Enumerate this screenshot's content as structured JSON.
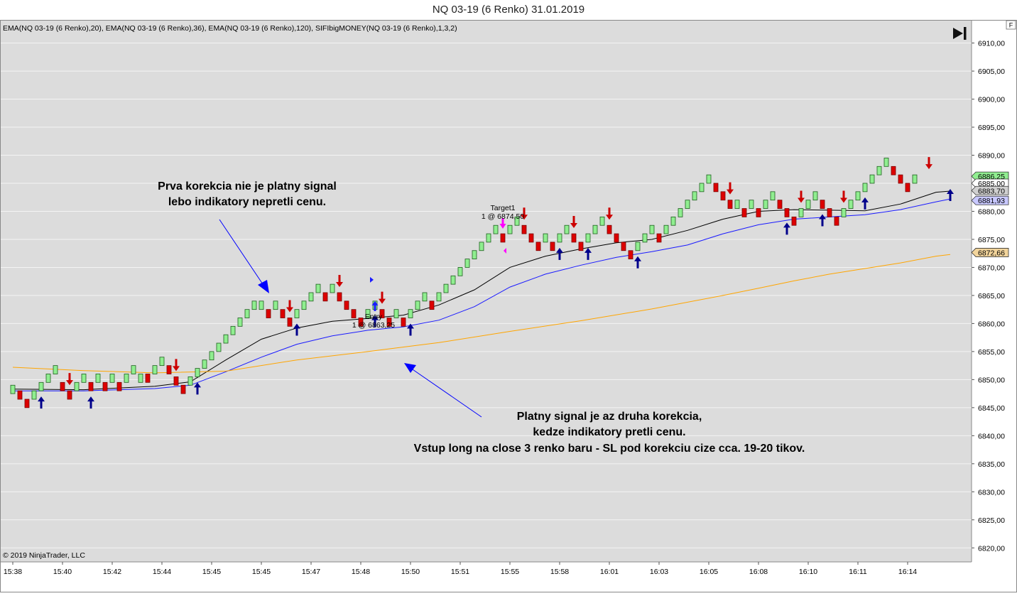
{
  "window": {
    "title": "NQ 03-19 (6 Renko)  31.01.2019"
  },
  "indicator_label": "EMA(NQ 03-19 (6 Renko),20), EMA(NQ 03-19 (6 Renko),36), EMA(NQ 03-19 (6 Renko),120), SIFIbigMONEY(NQ 03-19 (6 Renko),1,3,2)",
  "copyright": "© 2019 NinjaTrader, LLC",
  "panel_badge": "F",
  "colors": {
    "background": "#dcdcdc",
    "up_brick": "#90ee90",
    "down_brick": "#dd0000",
    "ema20": "#000000",
    "ema36": "#1a1aff",
    "ema120": "#ffa500",
    "buy_arrow": "#00008b",
    "sell_arrow": "#cc0000",
    "annotation": "#000000",
    "pointer": "#0000ff",
    "target_marker": "#ff00ff"
  },
  "annotations": {
    "top_left": [
      "Prva korekcia nie je platny signal",
      "lebo indikatory nepretli cenu."
    ],
    "bottom": [
      "Platny signal je az druha korekcia,",
      "kedze indikatory pretli cenu.",
      "Vstup long na close 3 renko baru - SL pod korekciu cize cca. 19-20 tikov."
    ]
  },
  "orders": {
    "target_label": "Target1",
    "target_detail": "1 @ 6874,50",
    "entry_label": "Entry",
    "entry_detail": "1 @ 6863,25"
  },
  "chart_data": {
    "type": "renko",
    "brick_size": 1.5,
    "ylim": [
      6817.5,
      6914
    ],
    "y_ticks": [
      6820,
      6825,
      6830,
      6835,
      6840,
      6845,
      6850,
      6855,
      6860,
      6865,
      6870,
      6875,
      6880,
      6885,
      6890,
      6895,
      6900,
      6905,
      6910
    ],
    "y_tick_labels": [
      "6820,00",
      "6825,00",
      "6830,00",
      "6835,00",
      "6840,00",
      "6845,00",
      "6850,00",
      "6855,00",
      "6860,00",
      "6865,00",
      "6870,00",
      "6875,00",
      "6880,00",
      "6885,00",
      "6890,00",
      "6895,00",
      "6900,00",
      "6905,00",
      "6910,00"
    ],
    "x_labels": [
      {
        "label": "15:38",
        "bar": 0
      },
      {
        "label": "15:40",
        "bar": 7
      },
      {
        "label": "15:42",
        "bar": 14
      },
      {
        "label": "15:44",
        "bar": 21
      },
      {
        "label": "15:45",
        "bar": 28
      },
      {
        "label": "15:45",
        "bar": 35
      },
      {
        "label": "15:47",
        "bar": 42
      },
      {
        "label": "15:48",
        "bar": 49
      },
      {
        "label": "15:50",
        "bar": 56
      },
      {
        "label": "15:51",
        "bar": 63
      },
      {
        "label": "15:55",
        "bar": 70
      },
      {
        "label": "15:58",
        "bar": 77
      },
      {
        "label": "16:01",
        "bar": 84
      },
      {
        "label": "16:03",
        "bar": 91
      },
      {
        "label": "16:05",
        "bar": 98
      },
      {
        "label": "16:08",
        "bar": 105
      },
      {
        "label": "16:10",
        "bar": 112
      },
      {
        "label": "16:11",
        "bar": 119
      },
      {
        "label": "16:14",
        "bar": 126
      }
    ],
    "bricks": [
      {
        "o": 6847.5,
        "c": 6849.0
      },
      {
        "o": 6848.0,
        "c": 6846.5
      },
      {
        "o": 6846.5,
        "c": 6845.0
      },
      {
        "o": 6846.5,
        "c": 6848.0
      },
      {
        "o": 6848.0,
        "c": 6849.5
      },
      {
        "o": 6849.5,
        "c": 6851.0
      },
      {
        "o": 6851.0,
        "c": 6852.5
      },
      {
        "o": 6849.5,
        "c": 6848.0
      },
      {
        "o": 6848.0,
        "c": 6846.5
      },
      {
        "o": 6848.0,
        "c": 6849.5
      },
      {
        "o": 6849.5,
        "c": 6851.0
      },
      {
        "o": 6849.5,
        "c": 6848.0
      },
      {
        "o": 6849.5,
        "c": 6851.0
      },
      {
        "o": 6849.5,
        "c": 6848.0
      },
      {
        "o": 6849.5,
        "c": 6851.0
      },
      {
        "o": 6849.5,
        "c": 6848.0
      },
      {
        "o": 6849.5,
        "c": 6851.0
      },
      {
        "o": 6851.0,
        "c": 6852.5
      },
      {
        "o": 6849.5,
        "c": 6851.0
      },
      {
        "o": 6851.0,
        "c": 6849.5
      },
      {
        "o": 6851.0,
        "c": 6852.5
      },
      {
        "o": 6852.5,
        "c": 6854.0
      },
      {
        "o": 6852.5,
        "c": 6851.0
      },
      {
        "o": 6850.5,
        "c": 6849.0
      },
      {
        "o": 6849.0,
        "c": 6847.5
      },
      {
        "o": 6849.0,
        "c": 6850.5
      },
      {
        "o": 6850.5,
        "c": 6852.0
      },
      {
        "o": 6852.0,
        "c": 6853.5
      },
      {
        "o": 6853.5,
        "c": 6855.0
      },
      {
        "o": 6855.0,
        "c": 6856.5
      },
      {
        "o": 6856.5,
        "c": 6858.0
      },
      {
        "o": 6858.0,
        "c": 6859.5
      },
      {
        "o": 6859.5,
        "c": 6861.0
      },
      {
        "o": 6861.0,
        "c": 6862.5
      },
      {
        "o": 6862.5,
        "c": 6864.0
      },
      {
        "o": 6862.5,
        "c": 6864.0
      },
      {
        "o": 6862.5,
        "c": 6861.0
      },
      {
        "o": 6862.5,
        "c": 6864.0
      },
      {
        "o": 6862.5,
        "c": 6861.0
      },
      {
        "o": 6861.0,
        "c": 6859.5
      },
      {
        "o": 6861.0,
        "c": 6862.5
      },
      {
        "o": 6862.5,
        "c": 6864.0
      },
      {
        "o": 6864.0,
        "c": 6865.5
      },
      {
        "o": 6865.5,
        "c": 6867.0
      },
      {
        "o": 6865.5,
        "c": 6864.0
      },
      {
        "o": 6865.5,
        "c": 6867.0
      },
      {
        "o": 6865.5,
        "c": 6864.0
      },
      {
        "o": 6864.0,
        "c": 6862.5
      },
      {
        "o": 6862.5,
        "c": 6861.0
      },
      {
        "o": 6861.0,
        "c": 6859.5
      },
      {
        "o": 6861.0,
        "c": 6862.5
      },
      {
        "o": 6862.5,
        "c": 6864.0
      },
      {
        "o": 6862.5,
        "c": 6861.0
      },
      {
        "o": 6861.0,
        "c": 6859.5
      },
      {
        "o": 6861.0,
        "c": 6862.5
      },
      {
        "o": 6861.0,
        "c": 6859.5
      },
      {
        "o": 6861.0,
        "c": 6862.5
      },
      {
        "o": 6862.5,
        "c": 6864.0
      },
      {
        "o": 6864.0,
        "c": 6865.5
      },
      {
        "o": 6864.0,
        "c": 6862.5
      },
      {
        "o": 6864.0,
        "c": 6865.5
      },
      {
        "o": 6865.5,
        "c": 6867.0
      },
      {
        "o": 6867.0,
        "c": 6868.5
      },
      {
        "o": 6868.5,
        "c": 6870.0
      },
      {
        "o": 6870.0,
        "c": 6871.5
      },
      {
        "o": 6871.5,
        "c": 6873.0
      },
      {
        "o": 6873.0,
        "c": 6874.5
      },
      {
        "o": 6874.5,
        "c": 6876.0
      },
      {
        "o": 6876.0,
        "c": 6877.5
      },
      {
        "o": 6876.0,
        "c": 6874.5
      },
      {
        "o": 6876.0,
        "c": 6877.5
      },
      {
        "o": 6877.5,
        "c": 6879.0
      },
      {
        "o": 6877.5,
        "c": 6876.0
      },
      {
        "o": 6876.0,
        "c": 6874.5
      },
      {
        "o": 6874.5,
        "c": 6873.0
      },
      {
        "o": 6874.5,
        "c": 6876.0
      },
      {
        "o": 6874.5,
        "c": 6873.0
      },
      {
        "o": 6874.5,
        "c": 6876.0
      },
      {
        "o": 6876.0,
        "c": 6877.5
      },
      {
        "o": 6876.0,
        "c": 6874.5
      },
      {
        "o": 6874.5,
        "c": 6873.0
      },
      {
        "o": 6874.5,
        "c": 6876.0
      },
      {
        "o": 6876.0,
        "c": 6877.5
      },
      {
        "o": 6877.5,
        "c": 6879.0
      },
      {
        "o": 6877.5,
        "c": 6876.0
      },
      {
        "o": 6876.0,
        "c": 6874.5
      },
      {
        "o": 6874.5,
        "c": 6873.0
      },
      {
        "o": 6873.0,
        "c": 6871.5
      },
      {
        "o": 6873.0,
        "c": 6874.5
      },
      {
        "o": 6874.5,
        "c": 6876.0
      },
      {
        "o": 6876.0,
        "c": 6877.5
      },
      {
        "o": 6876.0,
        "c": 6874.5
      },
      {
        "o": 6876.0,
        "c": 6877.5
      },
      {
        "o": 6877.5,
        "c": 6879.0
      },
      {
        "o": 6879.0,
        "c": 6880.5
      },
      {
        "o": 6880.5,
        "c": 6882.0
      },
      {
        "o": 6882.0,
        "c": 6883.5
      },
      {
        "o": 6883.5,
        "c": 6885.0
      },
      {
        "o": 6885.0,
        "c": 6886.5
      },
      {
        "o": 6885.0,
        "c": 6883.5
      },
      {
        "o": 6883.5,
        "c": 6882.0
      },
      {
        "o": 6882.0,
        "c": 6880.5
      },
      {
        "o": 6880.5,
        "c": 6882.0
      },
      {
        "o": 6880.5,
        "c": 6879.0
      },
      {
        "o": 6880.5,
        "c": 6882.0
      },
      {
        "o": 6880.5,
        "c": 6879.0
      },
      {
        "o": 6880.5,
        "c": 6882.0
      },
      {
        "o": 6882.0,
        "c": 6883.5
      },
      {
        "o": 6882.0,
        "c": 6880.5
      },
      {
        "o": 6880.5,
        "c": 6879.0
      },
      {
        "o": 6879.0,
        "c": 6877.5
      },
      {
        "o": 6879.0,
        "c": 6880.5
      },
      {
        "o": 6880.5,
        "c": 6882.0
      },
      {
        "o": 6882.0,
        "c": 6883.5
      },
      {
        "o": 6882.0,
        "c": 6880.5
      },
      {
        "o": 6880.5,
        "c": 6879.0
      },
      {
        "o": 6879.0,
        "c": 6877.5
      },
      {
        "o": 6879.0,
        "c": 6880.5
      },
      {
        "o": 6880.5,
        "c": 6882.0
      },
      {
        "o": 6882.0,
        "c": 6883.5
      },
      {
        "o": 6883.5,
        "c": 6885.0
      },
      {
        "o": 6885.0,
        "c": 6886.5
      },
      {
        "o": 6886.5,
        "c": 6888.0
      },
      {
        "o": 6888.0,
        "c": 6889.5
      },
      {
        "o": 6888.0,
        "c": 6886.5
      },
      {
        "o": 6886.5,
        "c": 6885.0
      },
      {
        "o": 6885.0,
        "c": 6883.5
      },
      {
        "o": 6885.0,
        "c": 6886.5
      }
    ],
    "series": [
      {
        "name": "EMA(NQ 03-19 (6 Renko),20)",
        "color": "#000000",
        "points": [
          [
            0,
            6848.3
          ],
          [
            10,
            6848.2
          ],
          [
            20,
            6848.8
          ],
          [
            25,
            6849.6
          ],
          [
            30,
            6853.5
          ],
          [
            35,
            6857.2
          ],
          [
            40,
            6859.2
          ],
          [
            45,
            6860.4
          ],
          [
            50,
            6860.9
          ],
          [
            55,
            6861.5
          ],
          [
            60,
            6863.3
          ],
          [
            65,
            6866.0
          ],
          [
            70,
            6870.0
          ],
          [
            75,
            6872.0
          ],
          [
            80,
            6873.3
          ],
          [
            85,
            6874.4
          ],
          [
            90,
            6875.0
          ],
          [
            95,
            6876.6
          ],
          [
            100,
            6878.6
          ],
          [
            105,
            6880.0
          ],
          [
            110,
            6880.3
          ],
          [
            115,
            6880.2
          ],
          [
            120,
            6880.1
          ],
          [
            125,
            6881.3
          ],
          [
            130,
            6883.4
          ],
          [
            132,
            6883.6
          ]
        ]
      },
      {
        "name": "EMA(NQ 03-19 (6 Renko),36)",
        "color": "#1a1aff",
        "points": [
          [
            0,
            6848.0
          ],
          [
            10,
            6848.0
          ],
          [
            20,
            6848.4
          ],
          [
            25,
            6849.0
          ],
          [
            30,
            6851.4
          ],
          [
            35,
            6854.0
          ],
          [
            40,
            6856.3
          ],
          [
            45,
            6857.8
          ],
          [
            50,
            6858.8
          ],
          [
            55,
            6859.4
          ],
          [
            60,
            6860.6
          ],
          [
            65,
            6863.0
          ],
          [
            70,
            6866.5
          ],
          [
            75,
            6868.8
          ],
          [
            80,
            6870.4
          ],
          [
            85,
            6871.8
          ],
          [
            90,
            6872.8
          ],
          [
            95,
            6874.0
          ],
          [
            100,
            6876.0
          ],
          [
            105,
            6877.6
          ],
          [
            110,
            6878.6
          ],
          [
            115,
            6879.0
          ],
          [
            120,
            6879.4
          ],
          [
            125,
            6880.3
          ],
          [
            130,
            6881.7
          ],
          [
            132,
            6882.2
          ]
        ]
      },
      {
        "name": "EMA(NQ 03-19 (6 Renko),120)",
        "color": "#ffa500",
        "points": [
          [
            0,
            6852.2
          ],
          [
            10,
            6851.6
          ],
          [
            20,
            6851.2
          ],
          [
            30,
            6851.5
          ],
          [
            40,
            6853.5
          ],
          [
            50,
            6855.0
          ],
          [
            60,
            6856.6
          ],
          [
            70,
            6858.6
          ],
          [
            80,
            6860.5
          ],
          [
            90,
            6862.6
          ],
          [
            100,
            6865.0
          ],
          [
            105,
            6866.3
          ],
          [
            110,
            6867.6
          ],
          [
            115,
            6868.8
          ],
          [
            120,
            6869.8
          ],
          [
            125,
            6870.8
          ],
          [
            130,
            6872.0
          ],
          [
            132,
            6872.3
          ]
        ]
      }
    ],
    "buy_signals": [
      4,
      11,
      26,
      40,
      51,
      56,
      77,
      81,
      88,
      109,
      114,
      120,
      132
    ],
    "sell_signals": [
      8,
      23,
      39,
      46,
      52,
      72,
      79,
      84,
      101,
      111,
      117,
      129
    ],
    "entry_bar": 51,
    "target_bar": 69,
    "price_labels": [
      {
        "label": "6886,25",
        "value": 6886.25,
        "bg": "#90ee90"
      },
      {
        "label": "6885,00",
        "value": 6885.0,
        "bg": "#ffffff"
      },
      {
        "label": "6883,70",
        "value": 6883.7,
        "bg": "#d0d0d0"
      },
      {
        "label": "6881,93",
        "value": 6881.93,
        "bg": "#c8c8ff"
      },
      {
        "label": "6872,66",
        "value": 6872.66,
        "bg": "#f2d49b"
      }
    ]
  }
}
